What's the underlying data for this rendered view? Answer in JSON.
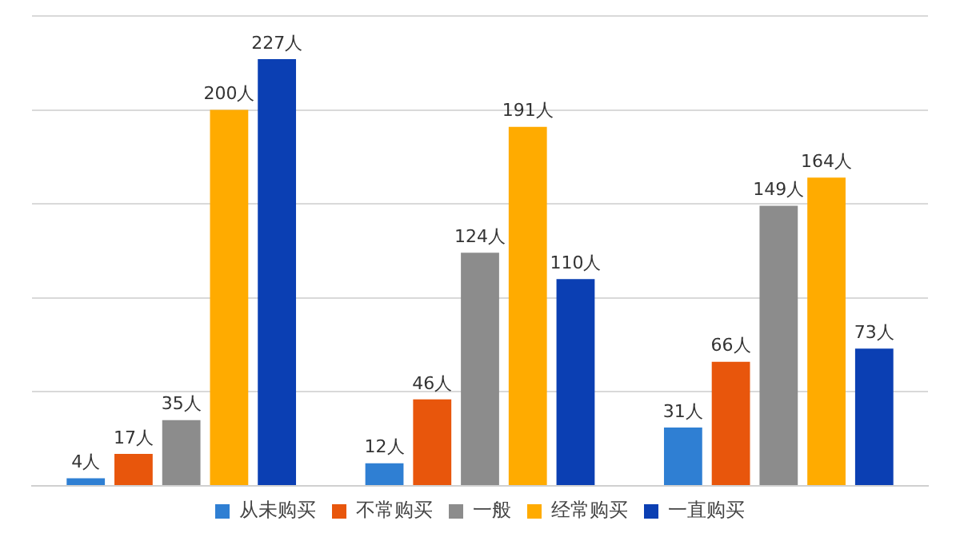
{
  "chart_data": {
    "type": "bar",
    "categories": [
      null,
      null,
      null
    ],
    "series": [
      {
        "name": "从未购买",
        "color": "#2f7fd3",
        "values": [
          4,
          12,
          31
        ],
        "value_labels": [
          "4人",
          "12人",
          "31人"
        ]
      },
      {
        "name": "不常购买",
        "color": "#e8560c",
        "values": [
          17,
          46,
          66
        ],
        "value_labels": [
          "17人",
          "46人",
          "66人"
        ]
      },
      {
        "name": "一般",
        "color": "#8c8c8c",
        "values": [
          35,
          124,
          149
        ],
        "value_labels": [
          "35人",
          "124人",
          "149人"
        ]
      },
      {
        "name": "经常购买",
        "color": "#ffab00",
        "values": [
          200,
          191,
          164
        ],
        "value_labels": [
          "200人",
          "191人",
          "164人"
        ]
      },
      {
        "name": "一直购买",
        "color": "#0b3fb3",
        "values": [
          227,
          110,
          73
        ],
        "value_labels": [
          "227人",
          "110人",
          "73人"
        ]
      }
    ],
    "grid": "y",
    "legend": "bottom",
    "tick_labels": false
  }
}
